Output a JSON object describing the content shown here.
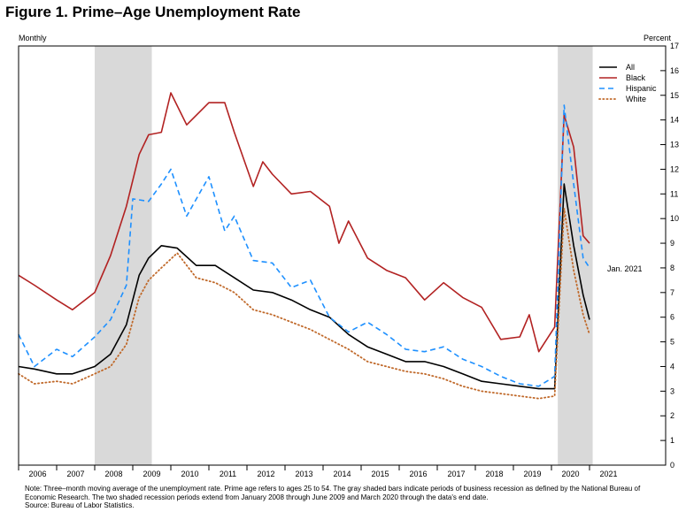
{
  "figure": {
    "title": "Figure 1. Prime–Age Unemployment Rate",
    "left_unit": "Monthly",
    "right_unit": "Percent",
    "note": "Note: Three–month moving average of the unemployment rate. Prime age refers to ages 25 to 54. The gray shaded bars indicate periods of business recession as defined by the National Bureau of Economic Research. The two shaded recession periods extend from January 2008 through June 2009 and March 2020 through the data's end date.",
    "source": "Source: Bureau of Labor Statistics.",
    "annotation": "Jan. 2021"
  },
  "chart_data": {
    "type": "line",
    "title": "Figure 1. Prime–Age Unemployment Rate",
    "xlabel": "",
    "ylabel": "Percent",
    "frequency_label": "Monthly",
    "x_range": [
      "2006-01",
      "2022-12"
    ],
    "x_ticks": [
      "2006",
      "2007",
      "2008",
      "2009",
      "2010",
      "2011",
      "2012",
      "2013",
      "2014",
      "2015",
      "2016",
      "2017",
      "2018",
      "2019",
      "2020",
      "2021"
    ],
    "ylim": [
      0,
      17
    ],
    "y_ticks": [
      0,
      1,
      2,
      3,
      4,
      5,
      6,
      7,
      8,
      9,
      10,
      11,
      12,
      13,
      14,
      15,
      16,
      17
    ],
    "y_axis_side": "right",
    "grid": false,
    "legend_position": "top-right",
    "recessions": [
      {
        "start": "2008-01",
        "end": "2009-06"
      },
      {
        "start": "2020-03",
        "end": "2021-01"
      }
    ],
    "annotation": {
      "text": "Jan. 2021",
      "x": "2021-01"
    },
    "series": [
      {
        "name": "All",
        "color": "#000000",
        "style": "solid",
        "points": [
          [
            "2006-01",
            4.0
          ],
          [
            "2006-06",
            3.9
          ],
          [
            "2007-01",
            3.7
          ],
          [
            "2007-06",
            3.7
          ],
          [
            "2008-01",
            4.0
          ],
          [
            "2008-06",
            4.5
          ],
          [
            "2008-11",
            5.7
          ],
          [
            "2009-03",
            7.7
          ],
          [
            "2009-06",
            8.4
          ],
          [
            "2009-10",
            8.9
          ],
          [
            "2010-03",
            8.8
          ],
          [
            "2010-09",
            8.1
          ],
          [
            "2011-03",
            8.1
          ],
          [
            "2011-09",
            7.6
          ],
          [
            "2012-03",
            7.1
          ],
          [
            "2012-09",
            7.0
          ],
          [
            "2013-03",
            6.7
          ],
          [
            "2013-09",
            6.3
          ],
          [
            "2014-03",
            6.0
          ],
          [
            "2014-09",
            5.3
          ],
          [
            "2015-03",
            4.8
          ],
          [
            "2015-09",
            4.5
          ],
          [
            "2016-03",
            4.2
          ],
          [
            "2016-09",
            4.2
          ],
          [
            "2017-03",
            4.0
          ],
          [
            "2017-09",
            3.7
          ],
          [
            "2018-03",
            3.4
          ],
          [
            "2018-09",
            3.3
          ],
          [
            "2019-03",
            3.2
          ],
          [
            "2019-09",
            3.1
          ],
          [
            "2020-02",
            3.1
          ],
          [
            "2020-05",
            11.4
          ],
          [
            "2020-08",
            8.9
          ],
          [
            "2020-11",
            6.9
          ],
          [
            "2021-01",
            5.9
          ]
        ]
      },
      {
        "name": "Black",
        "color": "#b22222",
        "style": "solid",
        "points": [
          [
            "2006-01",
            7.7
          ],
          [
            "2006-06",
            7.3
          ],
          [
            "2007-01",
            6.7
          ],
          [
            "2007-06",
            6.3
          ],
          [
            "2008-01",
            7.0
          ],
          [
            "2008-06",
            8.5
          ],
          [
            "2008-11",
            10.5
          ],
          [
            "2009-03",
            12.6
          ],
          [
            "2009-06",
            13.4
          ],
          [
            "2009-10",
            13.5
          ],
          [
            "2010-01",
            15.1
          ],
          [
            "2010-06",
            13.8
          ],
          [
            "2011-01",
            14.7
          ],
          [
            "2011-06",
            14.7
          ],
          [
            "2011-09",
            13.5
          ],
          [
            "2012-03",
            11.3
          ],
          [
            "2012-06",
            12.3
          ],
          [
            "2012-09",
            11.8
          ],
          [
            "2013-03",
            11.0
          ],
          [
            "2013-09",
            11.1
          ],
          [
            "2014-03",
            10.5
          ],
          [
            "2014-06",
            9.0
          ],
          [
            "2014-09",
            9.9
          ],
          [
            "2015-03",
            8.4
          ],
          [
            "2015-09",
            7.9
          ],
          [
            "2016-03",
            7.6
          ],
          [
            "2016-09",
            6.7
          ],
          [
            "2017-03",
            7.4
          ],
          [
            "2017-09",
            6.8
          ],
          [
            "2018-03",
            6.4
          ],
          [
            "2018-09",
            5.1
          ],
          [
            "2019-03",
            5.2
          ],
          [
            "2019-06",
            6.1
          ],
          [
            "2019-09",
            4.6
          ],
          [
            "2020-02",
            5.6
          ],
          [
            "2020-05",
            14.2
          ],
          [
            "2020-08",
            12.9
          ],
          [
            "2020-11",
            9.3
          ],
          [
            "2021-01",
            9.0
          ]
        ]
      },
      {
        "name": "Hispanic",
        "color": "#1e90ff",
        "style": "dashed",
        "points": [
          [
            "2006-01",
            5.3
          ],
          [
            "2006-06",
            4.0
          ],
          [
            "2007-01",
            4.7
          ],
          [
            "2007-06",
            4.4
          ],
          [
            "2008-01",
            5.2
          ],
          [
            "2008-06",
            5.9
          ],
          [
            "2008-11",
            7.3
          ],
          [
            "2009-01",
            10.8
          ],
          [
            "2009-06",
            10.7
          ],
          [
            "2009-10",
            11.4
          ],
          [
            "2010-01",
            12.0
          ],
          [
            "2010-06",
            10.1
          ],
          [
            "2011-01",
            11.7
          ],
          [
            "2011-06",
            9.5
          ],
          [
            "2011-09",
            10.1
          ],
          [
            "2012-03",
            8.3
          ],
          [
            "2012-09",
            8.2
          ],
          [
            "2013-03",
            7.2
          ],
          [
            "2013-09",
            7.5
          ],
          [
            "2014-03",
            6.0
          ],
          [
            "2014-09",
            5.4
          ],
          [
            "2015-03",
            5.8
          ],
          [
            "2015-09",
            5.3
          ],
          [
            "2016-03",
            4.7
          ],
          [
            "2016-09",
            4.6
          ],
          [
            "2017-03",
            4.8
          ],
          [
            "2017-09",
            4.3
          ],
          [
            "2018-03",
            4.0
          ],
          [
            "2018-09",
            3.6
          ],
          [
            "2019-03",
            3.3
          ],
          [
            "2019-09",
            3.2
          ],
          [
            "2020-02",
            3.6
          ],
          [
            "2020-05",
            14.6
          ],
          [
            "2020-08",
            11.4
          ],
          [
            "2020-11",
            8.4
          ],
          [
            "2021-01",
            8.0
          ]
        ]
      },
      {
        "name": "White",
        "color": "#c0692a",
        "style": "dotted",
        "points": [
          [
            "2006-01",
            3.7
          ],
          [
            "2006-06",
            3.3
          ],
          [
            "2007-01",
            3.4
          ],
          [
            "2007-06",
            3.3
          ],
          [
            "2008-01",
            3.7
          ],
          [
            "2008-06",
            4.0
          ],
          [
            "2008-11",
            4.9
          ],
          [
            "2009-03",
            6.8
          ],
          [
            "2009-06",
            7.5
          ],
          [
            "2009-10",
            8.0
          ],
          [
            "2010-03",
            8.6
          ],
          [
            "2010-09",
            7.6
          ],
          [
            "2011-03",
            7.4
          ],
          [
            "2011-09",
            7.0
          ],
          [
            "2012-03",
            6.3
          ],
          [
            "2012-09",
            6.1
          ],
          [
            "2013-03",
            5.8
          ],
          [
            "2013-09",
            5.5
          ],
          [
            "2014-03",
            5.1
          ],
          [
            "2014-09",
            4.7
          ],
          [
            "2015-03",
            4.2
          ],
          [
            "2015-09",
            4.0
          ],
          [
            "2016-03",
            3.8
          ],
          [
            "2016-09",
            3.7
          ],
          [
            "2017-03",
            3.5
          ],
          [
            "2017-09",
            3.2
          ],
          [
            "2018-03",
            3.0
          ],
          [
            "2018-09",
            2.9
          ],
          [
            "2019-03",
            2.8
          ],
          [
            "2019-09",
            2.7
          ],
          [
            "2020-02",
            2.8
          ],
          [
            "2020-05",
            10.4
          ],
          [
            "2020-08",
            7.9
          ],
          [
            "2020-11",
            6.1
          ],
          [
            "2021-01",
            5.3
          ]
        ]
      }
    ]
  }
}
